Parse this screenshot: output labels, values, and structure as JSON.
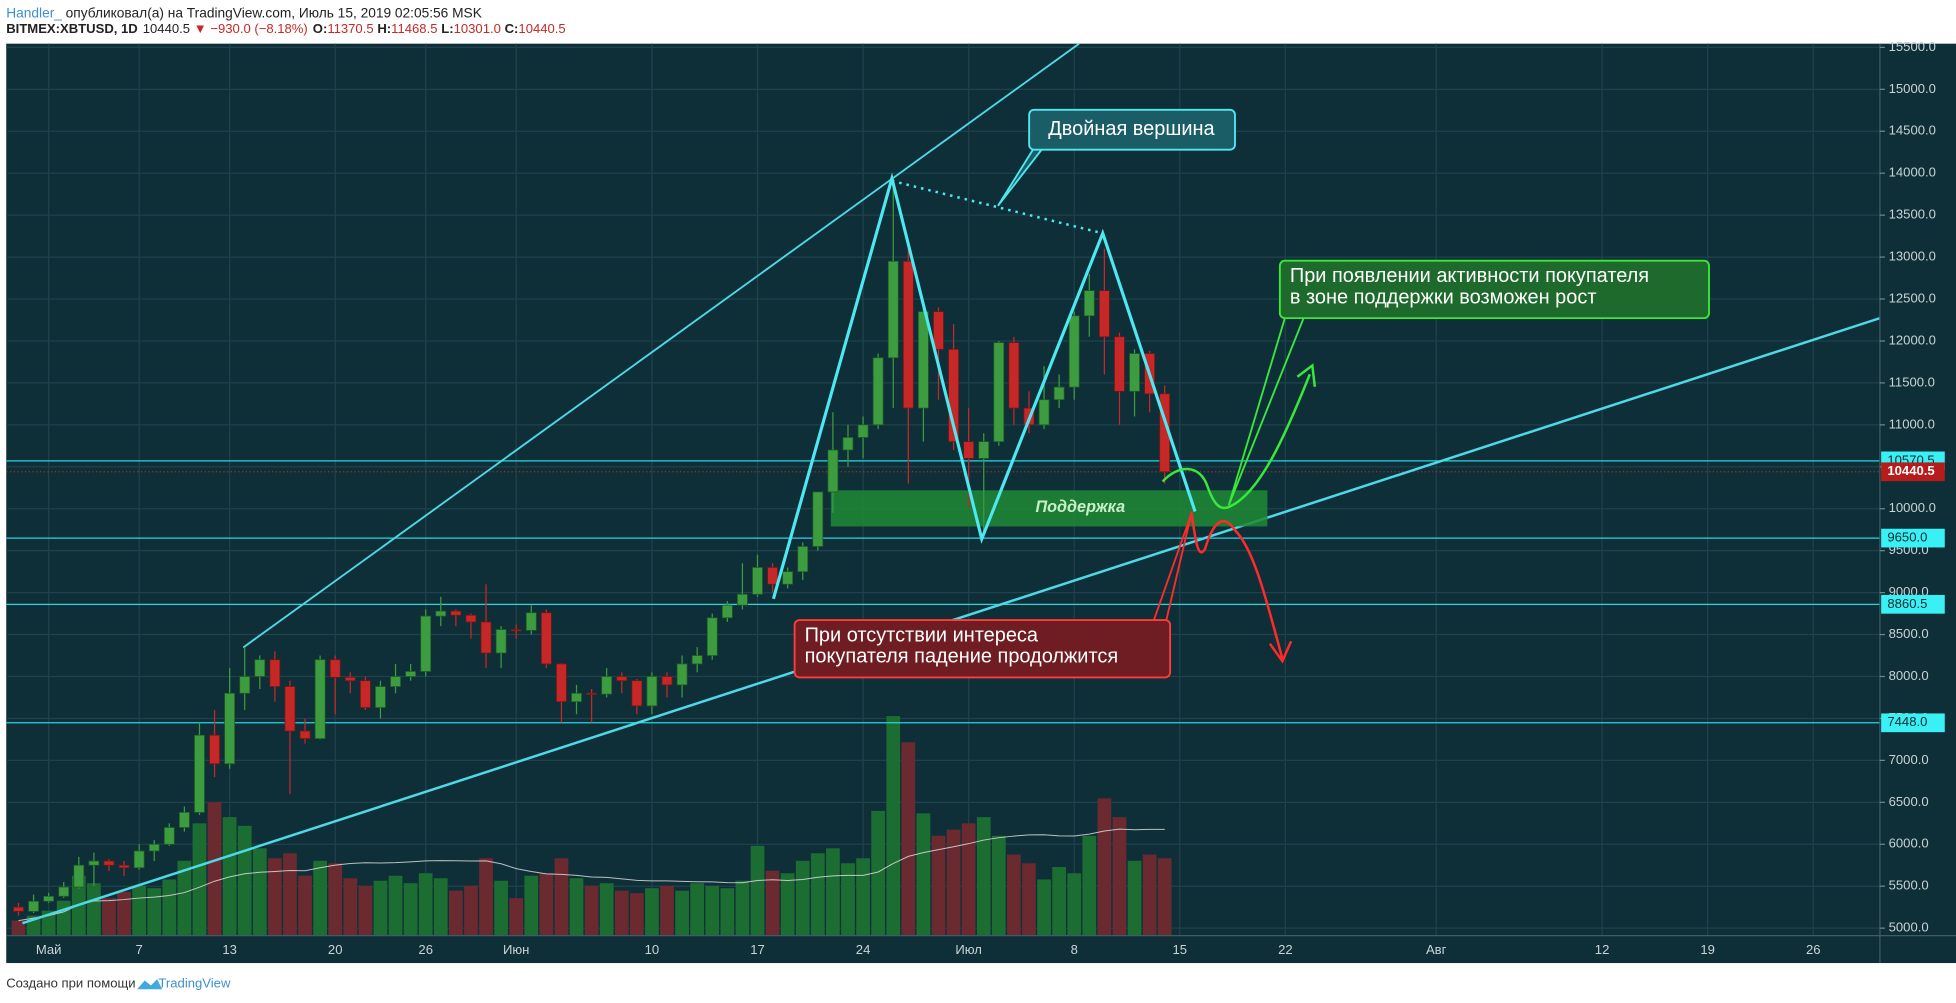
{
  "header": {
    "author": "Handler_",
    "published": "опубликовал(а) на TradingView.com, Июль 15, 2019 02:05:56 MSK",
    "symbol": "BITMEX:XBTUSD, 1D",
    "last": "10440.5",
    "change": "▼ −930.0 (−8.18%)",
    "o_label": "O:",
    "o": "11370.5",
    "h_label": "H:",
    "h": "11468.5",
    "l_label": "L:",
    "l": "10301.0",
    "c_label": "C:",
    "c": "10440.5"
  },
  "chart_data": {
    "type": "candlestick",
    "x": [
      "2019-04-29",
      "2019-04-30",
      "2019-05-01",
      "2019-05-02",
      "2019-05-03",
      "2019-05-04",
      "2019-05-05",
      "2019-05-06",
      "2019-05-07",
      "2019-05-08",
      "2019-05-09",
      "2019-05-10",
      "2019-05-11",
      "2019-05-12",
      "2019-05-13",
      "2019-05-14",
      "2019-05-15",
      "2019-05-16",
      "2019-05-17",
      "2019-05-18",
      "2019-05-19",
      "2019-05-20",
      "2019-05-21",
      "2019-05-22",
      "2019-05-23",
      "2019-05-24",
      "2019-05-25",
      "2019-05-26",
      "2019-05-27",
      "2019-05-28",
      "2019-05-29",
      "2019-05-30",
      "2019-05-31",
      "2019-06-01",
      "2019-06-02",
      "2019-06-03",
      "2019-06-04",
      "2019-06-05",
      "2019-06-06",
      "2019-06-07",
      "2019-06-08",
      "2019-06-09",
      "2019-06-10",
      "2019-06-11",
      "2019-06-12",
      "2019-06-13",
      "2019-06-14",
      "2019-06-15",
      "2019-06-16",
      "2019-06-17",
      "2019-06-18",
      "2019-06-19",
      "2019-06-20",
      "2019-06-21",
      "2019-06-22",
      "2019-06-23",
      "2019-06-24",
      "2019-06-25",
      "2019-06-26",
      "2019-06-27",
      "2019-06-28",
      "2019-06-29",
      "2019-06-30",
      "2019-07-01",
      "2019-07-02",
      "2019-07-03",
      "2019-07-04",
      "2019-07-05",
      "2019-07-06",
      "2019-07-07",
      "2019-07-08",
      "2019-07-09",
      "2019-07-10",
      "2019-07-11",
      "2019-07-12",
      "2019-07-13",
      "2019-07-14"
    ],
    "open": [
      5250,
      5200,
      5320,
      5380,
      5490,
      5750,
      5800,
      5750,
      5720,
      5920,
      6000,
      6200,
      6380,
      7300,
      6960,
      7800,
      8000,
      8200,
      7880,
      7350,
      7260,
      8200,
      7990,
      7950,
      7630,
      7880,
      8000,
      8060,
      8720,
      8780,
      8730,
      8650,
      8280,
      8560,
      8550,
      8760,
      8150,
      7700,
      7800,
      7790,
      8000,
      7950,
      7650,
      8000,
      7900,
      8150,
      8250,
      8700,
      8850,
      8980,
      9300,
      9100,
      9250,
      9550,
      10200,
      10700,
      10850,
      11000,
      11800,
      12950,
      11200,
      12350,
      11900,
      10800,
      10600,
      10800,
      11980,
      11200,
      11000,
      11300,
      11450,
      12300,
      12600,
      12050,
      11400,
      11850,
      11370.5
    ],
    "high": [
      5300,
      5400,
      5420,
      5550,
      5850,
      5900,
      5820,
      5800,
      6000,
      6050,
      6250,
      6450,
      7450,
      7600,
      8100,
      8350,
      8250,
      8300,
      7950,
      7500,
      8250,
      8250,
      8050,
      8000,
      7950,
      8150,
      8150,
      8800,
      8950,
      8800,
      8750,
      9100,
      8600,
      8620,
      8850,
      8800,
      8160,
      7900,
      7850,
      8100,
      8050,
      7970,
      8050,
      8050,
      8250,
      8350,
      8750,
      8900,
      9350,
      9450,
      9350,
      9300,
      9600,
      10200,
      11150,
      11000,
      11100,
      11850,
      13950,
      13100,
      12450,
      12400,
      12200,
      11200,
      10900,
      12000,
      12050,
      11400,
      11700,
      11600,
      12350,
      12800,
      13100,
      12100,
      11900,
      11880,
      11468.5
    ],
    "low": [
      5150,
      5180,
      5300,
      5360,
      5470,
      5500,
      5680,
      5620,
      5700,
      5800,
      5980,
      6150,
      6350,
      6800,
      6900,
      7600,
      7850,
      7700,
      6600,
      7200,
      7250,
      7550,
      7800,
      7600,
      7500,
      7800,
      7950,
      8000,
      8600,
      8600,
      8450,
      8100,
      8100,
      8450,
      8500,
      8100,
      7450,
      7550,
      7450,
      7750,
      7800,
      7550,
      7550,
      7750,
      7750,
      8050,
      8200,
      8650,
      8800,
      8950,
      9000,
      9050,
      9150,
      9500,
      9950,
      10500,
      10600,
      10950,
      11200,
      10300,
      10800,
      11300,
      10700,
      10000,
      9700,
      10750,
      11000,
      10900,
      10950,
      11200,
      11300,
      12050,
      11600,
      11000,
      11100,
      11150,
      10301
    ],
    "close": [
      5200,
      5320,
      5380,
      5490,
      5750,
      5800,
      5750,
      5720,
      5920,
      6000,
      6200,
      6380,
      7300,
      6960,
      7800,
      8000,
      8200,
      7880,
      7350,
      7260,
      8200,
      7990,
      7950,
      7630,
      7880,
      8000,
      8060,
      8720,
      8780,
      8730,
      8650,
      8280,
      8560,
      8550,
      8760,
      8150,
      7700,
      7800,
      7790,
      8000,
      7950,
      7650,
      8000,
      7900,
      8150,
      8250,
      8700,
      8850,
      8980,
      9300,
      9100,
      9250,
      9550,
      10200,
      10700,
      10850,
      11000,
      11800,
      12950,
      11200,
      12350,
      11900,
      10800,
      10600,
      10800,
      11980,
      11200,
      11000,
      11300,
      11450,
      12300,
      12600,
      12050,
      11400,
      11850,
      11370,
      10440.5
    ],
    "volume": [
      12,
      16,
      20,
      28,
      48,
      42,
      30,
      35,
      40,
      38,
      45,
      60,
      90,
      107,
      95,
      88,
      70,
      62,
      66,
      48,
      60,
      58,
      46,
      40,
      44,
      48,
      42,
      50,
      46,
      36,
      40,
      62,
      44,
      30,
      48,
      50,
      62,
      46,
      40,
      42,
      36,
      34,
      38,
      40,
      36,
      42,
      40,
      38,
      44,
      72,
      52,
      50,
      60,
      66,
      70,
      58,
      62,
      100,
      176,
      155,
      98,
      80,
      85,
      90,
      95,
      80,
      65,
      58,
      45,
      55,
      50,
      80,
      110,
      95,
      60,
      65,
      62
    ],
    "xlim": [
      "2019-04-28",
      "2019-08-31"
    ],
    "xticks": [
      {
        "value": "2019-05-01",
        "label": "Май"
      },
      {
        "value": "2019-05-07",
        "label": "7"
      },
      {
        "value": "2019-05-13",
        "label": "13"
      },
      {
        "value": "2019-05-20",
        "label": "20"
      },
      {
        "value": "2019-05-26",
        "label": "26"
      },
      {
        "value": "2019-06-01",
        "label": "Июн"
      },
      {
        "value": "2019-06-10",
        "label": "10"
      },
      {
        "value": "2019-06-17",
        "label": "17"
      },
      {
        "value": "2019-06-24",
        "label": "24"
      },
      {
        "value": "2019-07-01",
        "label": "Июл"
      },
      {
        "value": "2019-07-08",
        "label": "8"
      },
      {
        "value": "2019-07-15",
        "label": "15"
      },
      {
        "value": "2019-07-22",
        "label": "22"
      },
      {
        "value": "2019-08-01",
        "label": "Авг"
      },
      {
        "value": "2019-08-12",
        "label": "12"
      },
      {
        "value": "2019-08-19",
        "label": "19"
      },
      {
        "value": "2019-08-26",
        "label": "26"
      }
    ],
    "ylim": [
      4911,
      15544
    ],
    "yticks": [
      {
        "value": 5000,
        "label": "5000.0"
      },
      {
        "value": 5500,
        "label": "5500.0"
      },
      {
        "value": 6000,
        "label": "6000.0"
      },
      {
        "value": 6500,
        "label": "6500.0"
      },
      {
        "value": 7000,
        "label": "7000.0"
      },
      {
        "value": 7500,
        "label": "7500.0"
      },
      {
        "value": 8000,
        "label": "8000.0"
      },
      {
        "value": 8500,
        "label": "8500.0"
      },
      {
        "value": 9000,
        "label": "9000.0"
      },
      {
        "value": 9500,
        "label": "9500.0"
      },
      {
        "value": 10000,
        "label": "10000.0"
      },
      {
        "value": 10500,
        "label": "10500.0"
      },
      {
        "value": 11000,
        "label": "11000.0"
      },
      {
        "value": 11500,
        "label": "11500.0"
      },
      {
        "value": 12000,
        "label": "12000.0"
      },
      {
        "value": 12500,
        "label": "12500.0"
      },
      {
        "value": 13000,
        "label": "13000.0"
      },
      {
        "value": 13500,
        "label": "13500.0"
      },
      {
        "value": 14000,
        "label": "14000.0"
      },
      {
        "value": 14500,
        "label": "14500.0"
      },
      {
        "value": 15000,
        "label": "15000.0"
      },
      {
        "value": 15500,
        "label": "15500.0"
      }
    ],
    "levels": [
      10570.5,
      {
        "value": 9650,
        "label": "9650.0"
      },
      8860.5,
      {
        "value": 7448,
        "label": "7448.0"
      }
    ],
    "last_price": 10440.5,
    "grid": true,
    "up_color": "#3d9b40",
    "down_color": "#c62828",
    "level_color": "#2ad4e0",
    "annotations": {
      "double_top": "Двойная вершина",
      "support": "Поддержка",
      "bull": [
        "При появлении активности покупателя",
        "в зоне поддержки возможен рост"
      ],
      "bear": [
        "При отсутствии интереса",
        "покупателя падение продолжится"
      ]
    }
  },
  "footer": {
    "text": "Создано при помощи",
    "brand": "TradingView"
  }
}
